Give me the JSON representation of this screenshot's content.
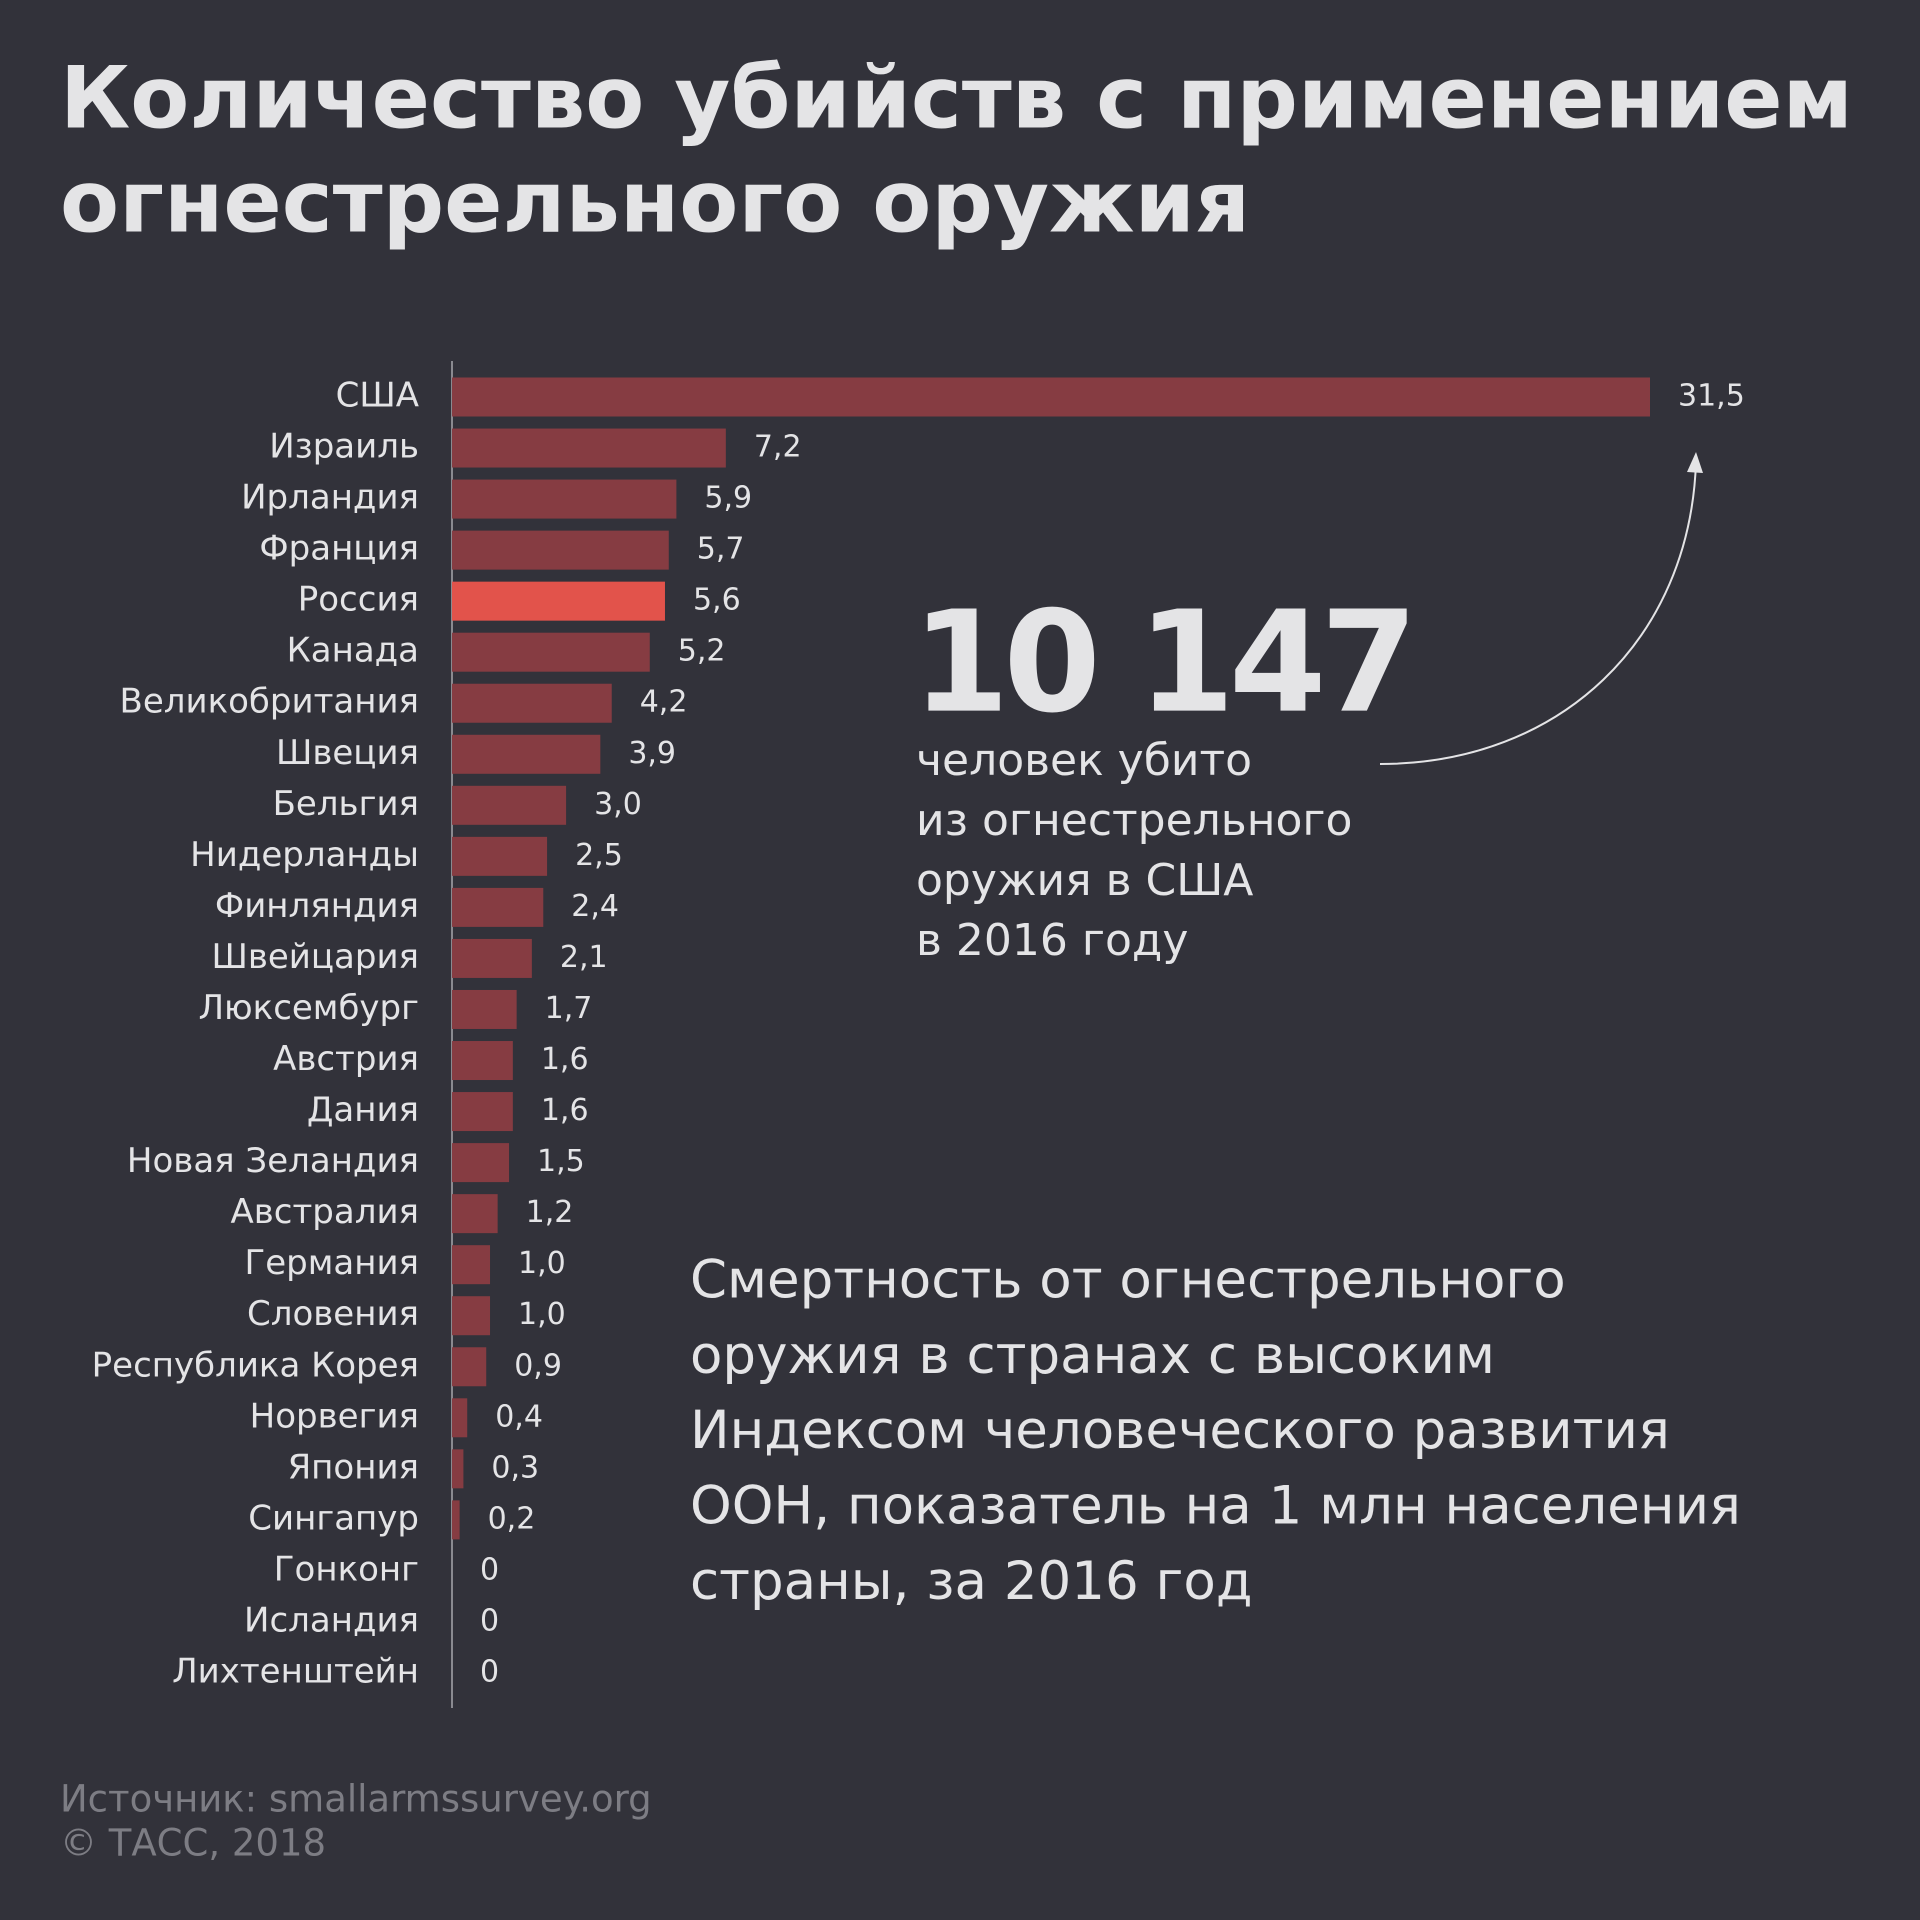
{
  "chart_data": {
    "type": "bar",
    "orientation": "horizontal",
    "title": [
      "Количество убийств с применением",
      "огнестрельного оружия"
    ],
    "categories": [
      "США",
      "Израиль",
      "Ирландия",
      "Франция",
      "Россия",
      "Канада",
      "Великобритания",
      "Швеция",
      "Бельгия",
      "Нидерланды",
      "Финляндия",
      "Швейцария",
      "Люксембург",
      "Австрия",
      "Дания",
      "Новая Зеландия",
      "Австралия",
      "Германия",
      "Словения",
      "Республика Корея",
      "Норвегия",
      "Япония",
      "Сингапур",
      "Гонконг",
      "Исландия",
      "Лихтенштейн"
    ],
    "values": [
      31.5,
      7.2,
      5.9,
      5.7,
      5.6,
      5.2,
      4.2,
      3.9,
      3.0,
      2.5,
      2.4,
      2.1,
      1.7,
      1.6,
      1.6,
      1.5,
      1.2,
      1.0,
      1.0,
      0.9,
      0.4,
      0.3,
      0.2,
      0,
      0,
      0
    ],
    "value_labels": [
      "31,5",
      "7,2",
      "5,9",
      "5,7",
      "5,6",
      "5,2",
      "4,2",
      "3,9",
      "3,0",
      "2,5",
      "2,4",
      "2,1",
      "1,7",
      "1,6",
      "1,6",
      "1,5",
      "1,2",
      "1,0",
      "1,0",
      "0,9",
      "0,4",
      "0,3",
      "0,2",
      "0",
      "0",
      "0"
    ],
    "colors": [
      "#863c42",
      "#863c42",
      "#863c42",
      "#863c42",
      "#e2534b",
      "#863c42",
      "#863c42",
      "#863c42",
      "#863c42",
      "#863c42",
      "#863c42",
      "#863c42",
      "#863c42",
      "#863c42",
      "#863c42",
      "#863c42",
      "#863c42",
      "#863c42",
      "#863c42",
      "#863c42",
      "#863c42",
      "#863c42",
      "#863c42",
      "#863c42",
      "#863c42",
      "#863c42"
    ],
    "xlim": [
      0,
      31.5
    ],
    "highlight_number": "10 147",
    "highlight_text": [
      "человек убито",
      "из огнестрельного",
      "оружия в США",
      "в 2016 году"
    ],
    "subtitle": [
      "Смертность от огнестрельного",
      "оружия в странах с высоким",
      "Индексом человеческого развития",
      "ООН, показатель на 1 млн населения",
      "страны, за 2016 год"
    ],
    "source": [
      "Источник: smallarmssurvey.org",
      "© ТАСС, 2018"
    ]
  }
}
